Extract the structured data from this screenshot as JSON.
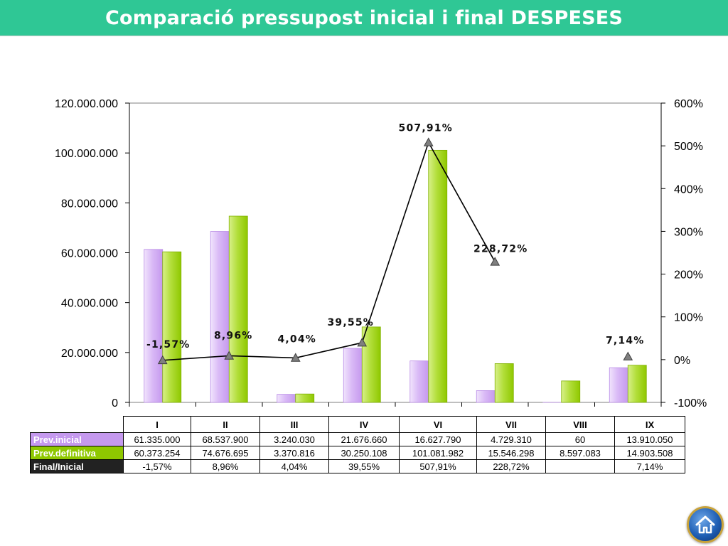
{
  "title": "Comparació pressupost inicial i final DESPESES",
  "colors": {
    "title_bg": "#2fc795",
    "inicial": "#c599ee",
    "definitiva": "#8fc800",
    "final_label_bg": "#222222"
  },
  "chart_data": {
    "type": "bar",
    "categories": [
      "I",
      "II",
      "III",
      "IV",
      "VI",
      "VII",
      "VIII",
      "IX"
    ],
    "series": [
      {
        "name": "Prev.inicial",
        "kind": "bar",
        "axis": "left",
        "values": [
          61335000,
          68537900,
          3240030,
          21676660,
          16627790,
          4729310,
          60,
          13910050
        ]
      },
      {
        "name": "Prev.definitiva",
        "kind": "bar",
        "axis": "left",
        "values": [
          60373254,
          74676695,
          3370816,
          30250108,
          101081982,
          15546298,
          8597083,
          14903508
        ]
      },
      {
        "name": "Final/Inicial",
        "kind": "line",
        "axis": "right",
        "values": [
          -1.57,
          8.96,
          4.04,
          39.55,
          507.91,
          228.72,
          null,
          7.14
        ],
        "connected_through": "VII"
      }
    ],
    "left_axis": {
      "min": 0,
      "max": 120000000,
      "ticks": [
        "0",
        "20.000.000",
        "40.000.000",
        "60.000.000",
        "80.000.000",
        "100.000.000",
        "120.000.000"
      ]
    },
    "right_axis": {
      "min": -100,
      "max": 600,
      "ticks": [
        "-100%",
        "0%",
        "100%",
        "200%",
        "300%",
        "400%",
        "500%",
        "600%"
      ]
    },
    "point_labels": [
      "-1,57%",
      "8,96%",
      "4,04%",
      "39,55%",
      "507,91%",
      "228,72%",
      "",
      "7,14%"
    ],
    "grid": false,
    "legend": "data table below chart"
  },
  "table": {
    "columns": [
      "I",
      "II",
      "III",
      "IV",
      "VI",
      "VII",
      "VIII",
      "IX"
    ],
    "rows": [
      {
        "label": "Prev.inicial",
        "cells": [
          "61.335.000",
          "68.537.900",
          "3.240.030",
          "21.676.660",
          "16.627.790",
          "4.729.310",
          "60",
          "13.910.050"
        ]
      },
      {
        "label": "Prev.definitiva",
        "cells": [
          "60.373.254",
          "74.676.695",
          "3.370.816",
          "30.250.108",
          "101.081.982",
          "15.546.298",
          "8.597.083",
          "14.903.508"
        ]
      },
      {
        "label": "Final/Inicial",
        "cells": [
          "-1,57%",
          "8,96%",
          "4,04%",
          "39,55%",
          "507,91%",
          "228,72%",
          "",
          "7,14%"
        ]
      }
    ]
  },
  "home_button": {
    "icon": "home-icon"
  }
}
